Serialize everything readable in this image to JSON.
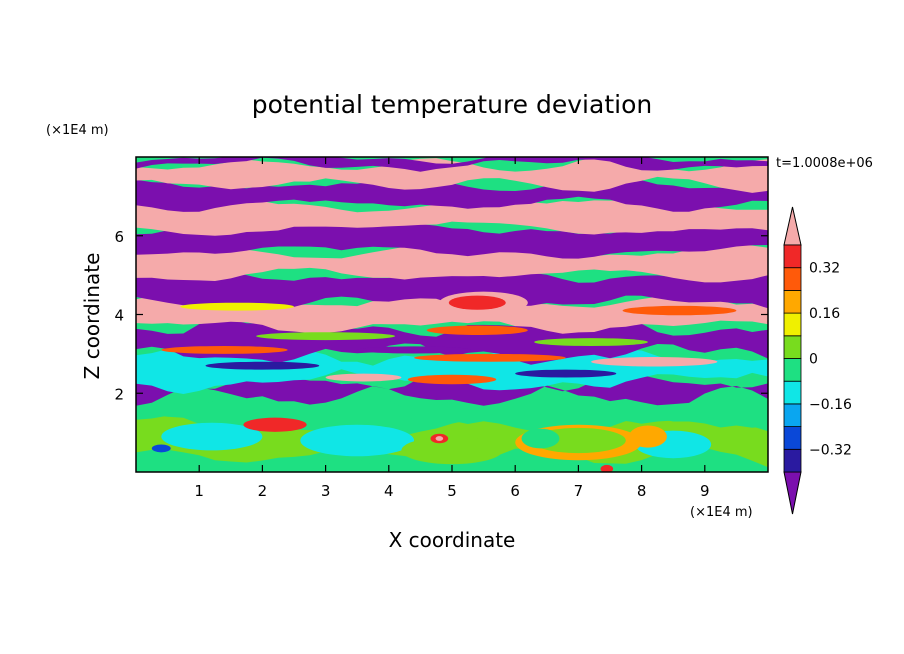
{
  "chart_data": {
    "type": "heatmap",
    "title": "potential temperature deviation",
    "xlabel": "X coordinate",
    "ylabel": "Z coordinate",
    "x_unit": "(×1E4 m)",
    "y_unit": "(×1E4 m)",
    "time_label": "t=1.0008e+06",
    "xlim": [
      0,
      10
    ],
    "ylim": [
      0,
      8
    ],
    "x_ticks": [
      "1",
      "2",
      "3",
      "4",
      "5",
      "6",
      "7",
      "8",
      "9"
    ],
    "y_ticks": [
      "2",
      "4",
      "6"
    ],
    "colorbar": {
      "levels": [
        -0.4,
        -0.32,
        -0.24,
        -0.16,
        -0.08,
        0,
        0.08,
        0.16,
        0.24,
        0.32,
        0.4
      ],
      "labels": [
        "0.32",
        "0.16",
        "0",
        "−0.16",
        "−0.32"
      ],
      "colors": [
        "#7b0fae",
        "#2a1aa0",
        "#0a48d8",
        "#0aa6f0",
        "#10e6e6",
        "#1ee082",
        "#78dc1e",
        "#f0f000",
        "#ffa800",
        "#ff5a0a",
        "#f02828",
        "#f5aaaa"
      ],
      "extend": "both"
    },
    "bands": [
      {
        "z": [
          0.0,
          0.4
        ],
        "dominant": "#1ee082"
      },
      {
        "z": [
          0.4,
          1.2
        ],
        "dominant": "#78dc1e",
        "features": [
          "warm bubble x 6.2-8.0 (#ffa800)",
          "cold cells (#10e6e6)"
        ]
      },
      {
        "z": [
          1.2,
          1.9
        ],
        "dominant": "#1ee082"
      },
      {
        "z": [
          1.9,
          2.3
        ],
        "dominant": "#7b0fae"
      },
      {
        "z": [
          2.3,
          3.0
        ],
        "dominant": "#10e6e6"
      },
      {
        "z": [
          3.0,
          3.7
        ],
        "dominant": "#7b0fae"
      },
      {
        "z": [
          3.7,
          4.3
        ],
        "dominant": "#f5aaaa",
        "features": [
          "warm core x 4.7-6.0 (#f02828)"
        ]
      },
      {
        "z": [
          4.3,
          5.0
        ],
        "dominant": "#7b0fae"
      },
      {
        "z": [
          5.0,
          5.6
        ],
        "dominant": "#f5aaaa"
      },
      {
        "z": [
          5.6,
          6.2
        ],
        "dominant": "#7b0fae"
      },
      {
        "z": [
          6.2,
          6.8
        ],
        "dominant": "#f5aaaa"
      },
      {
        "z": [
          6.8,
          7.3
        ],
        "dominant": "#7b0fae"
      },
      {
        "z": [
          7.3,
          7.8
        ],
        "dominant": "#f5aaaa"
      },
      {
        "z": [
          7.8,
          8.0
        ],
        "dominant": "#7b0fae"
      }
    ]
  }
}
